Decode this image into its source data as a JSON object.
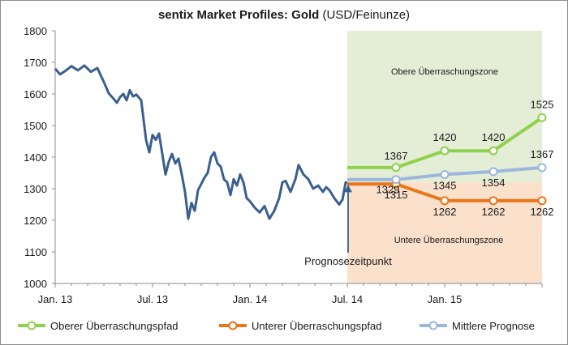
{
  "chart_data": {
    "type": "line",
    "title": "sentix Market Profiles: Gold",
    "title_suffix": " (USD/Feinunze)",
    "ylim": [
      1000,
      1800
    ],
    "y_ticks": [
      "1000",
      "1100",
      "1200",
      "1300",
      "1400",
      "1500",
      "1600",
      "1700",
      "1800"
    ],
    "x_ticks": [
      "Jan. 13",
      "Jul. 13",
      "Jan. 14",
      "Jul. 14",
      "Jan. 15"
    ],
    "grid": false,
    "legend_position": "bottom",
    "zones": {
      "upper": {
        "label": "Obere Überraschungszone",
        "color": "#e4edd6"
      },
      "lower": {
        "label": "Untere Überraschungszone",
        "color": "#fbe0cc"
      }
    },
    "forecast_marker": {
      "label": "Prognosezeitpunkt"
    },
    "history": {
      "name": "",
      "color": "#3a5f8f",
      "months": [
        0,
        0.3,
        0.6,
        1,
        1.4,
        1.8,
        2.2,
        2.6,
        3,
        3.3,
        3.6,
        3.8,
        4.0,
        4.2,
        4.4,
        4.6,
        4.8,
        5.0,
        5.3,
        5.6,
        5.8,
        6.0,
        6.2,
        6.4,
        6.6,
        6.8,
        7.0,
        7.2,
        7.4,
        7.6,
        7.8,
        8.0,
        8.2,
        8.4,
        8.6,
        8.8,
        9.0,
        9.2,
        9.4,
        9.6,
        9.8,
        10.0,
        10.2,
        10.4,
        10.6,
        10.8,
        11.0,
        11.2,
        11.4,
        11.6,
        11.8,
        12.0,
        12.3,
        12.6,
        12.9,
        13.2,
        13.5,
        13.8,
        14.0,
        14.2,
        14.5,
        14.8,
        15.0,
        15.3,
        15.6,
        15.9,
        16.2,
        16.5,
        16.7,
        16.9,
        17.2,
        17.5,
        17.7,
        17.9,
        18.0
      ],
      "values": [
        1680,
        1662,
        1672,
        1688,
        1675,
        1690,
        1670,
        1682,
        1638,
        1602,
        1585,
        1572,
        1590,
        1600,
        1580,
        1612,
        1592,
        1598,
        1580,
        1455,
        1415,
        1470,
        1455,
        1475,
        1410,
        1345,
        1385,
        1410,
        1380,
        1395,
        1345,
        1290,
        1205,
        1255,
        1230,
        1295,
        1315,
        1335,
        1350,
        1400,
        1415,
        1380,
        1370,
        1330,
        1320,
        1280,
        1330,
        1310,
        1345,
        1320,
        1270,
        1260,
        1240,
        1225,
        1245,
        1205,
        1230,
        1270,
        1320,
        1325,
        1290,
        1330,
        1375,
        1345,
        1330,
        1300,
        1310,
        1290,
        1305,
        1295,
        1270,
        1250,
        1265,
        1320,
        1318
      ]
    },
    "series": [
      {
        "name": "Oberer Überraschungspfad",
        "color": "#8fd14f",
        "x": [
          18,
          21,
          24,
          27,
          30
        ],
        "values": [
          1367,
          1367,
          1420,
          1420,
          1525
        ],
        "labels": [
          "",
          "1367",
          "1420",
          "1420",
          "1525"
        ]
      },
      {
        "name": "Unterer Überraschungspfad",
        "color": "#e8761b",
        "x": [
          18,
          21,
          24,
          27,
          30
        ],
        "values": [
          1315,
          1315,
          1262,
          1262,
          1262
        ],
        "labels": [
          "",
          "1315",
          "1262",
          "1262",
          "1262"
        ]
      },
      {
        "name": "Mittlere Prognose",
        "color": "#9db7dc",
        "x": [
          18,
          21,
          24,
          27,
          30
        ],
        "values": [
          1329,
          1329,
          1345,
          1354,
          1367
        ],
        "labels": [
          "",
          "1329",
          "1345",
          "1354",
          "1367"
        ]
      }
    ]
  }
}
